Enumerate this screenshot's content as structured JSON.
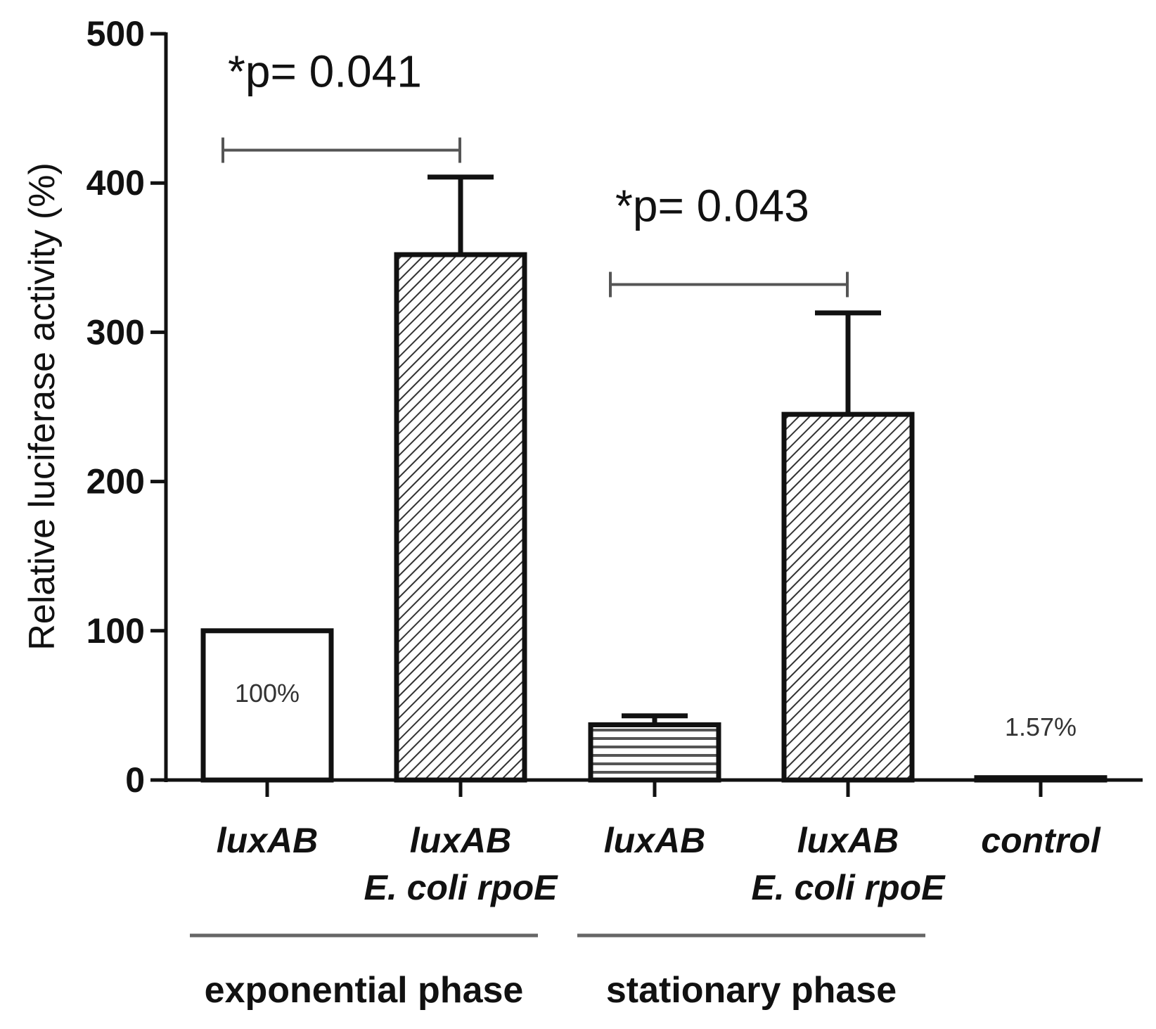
{
  "chart_data": {
    "type": "bar",
    "title": "",
    "xlabel": "",
    "ylabel": "Relative luciferase activity (%)",
    "ylim": [
      0,
      500
    ],
    "yticks": [
      "0",
      "100",
      "200",
      "300",
      "400",
      "500"
    ],
    "grid": false,
    "categories": [
      {
        "lines": [
          "luxAB"
        ],
        "value": 100,
        "error": null,
        "pattern": "none",
        "data_label": "100%"
      },
      {
        "lines": [
          "luxAB",
          "E. coli rpoE"
        ],
        "value": 352,
        "error": 52,
        "pattern": "diagonal",
        "data_label": ""
      },
      {
        "lines": [
          "luxAB"
        ],
        "value": 37,
        "error": 6,
        "pattern": "horizontal",
        "data_label": ""
      },
      {
        "lines": [
          "luxAB",
          "E. coli rpoE"
        ],
        "value": 245,
        "error": 68,
        "pattern": "diagonal",
        "data_label": ""
      },
      {
        "lines": [
          "control"
        ],
        "value": 1.57,
        "error": null,
        "pattern": "none",
        "data_label": "1.57%"
      }
    ],
    "groups": [
      {
        "label": "exponential phase",
        "from": 0,
        "to": 1
      },
      {
        "label": "stationary phase",
        "from": 2,
        "to": 3
      }
    ],
    "significance": [
      {
        "label": "*p= 0.041",
        "from": 0,
        "to": 1,
        "level": 422
      },
      {
        "label": "*p= 0.043",
        "from": 2,
        "to": 3,
        "level": 332
      }
    ],
    "colors": {
      "bar_fill": "#ffffff",
      "stroke": "#111111",
      "hatch": "#333333",
      "bracket": "#555555",
      "group_line": "#666666"
    }
  }
}
